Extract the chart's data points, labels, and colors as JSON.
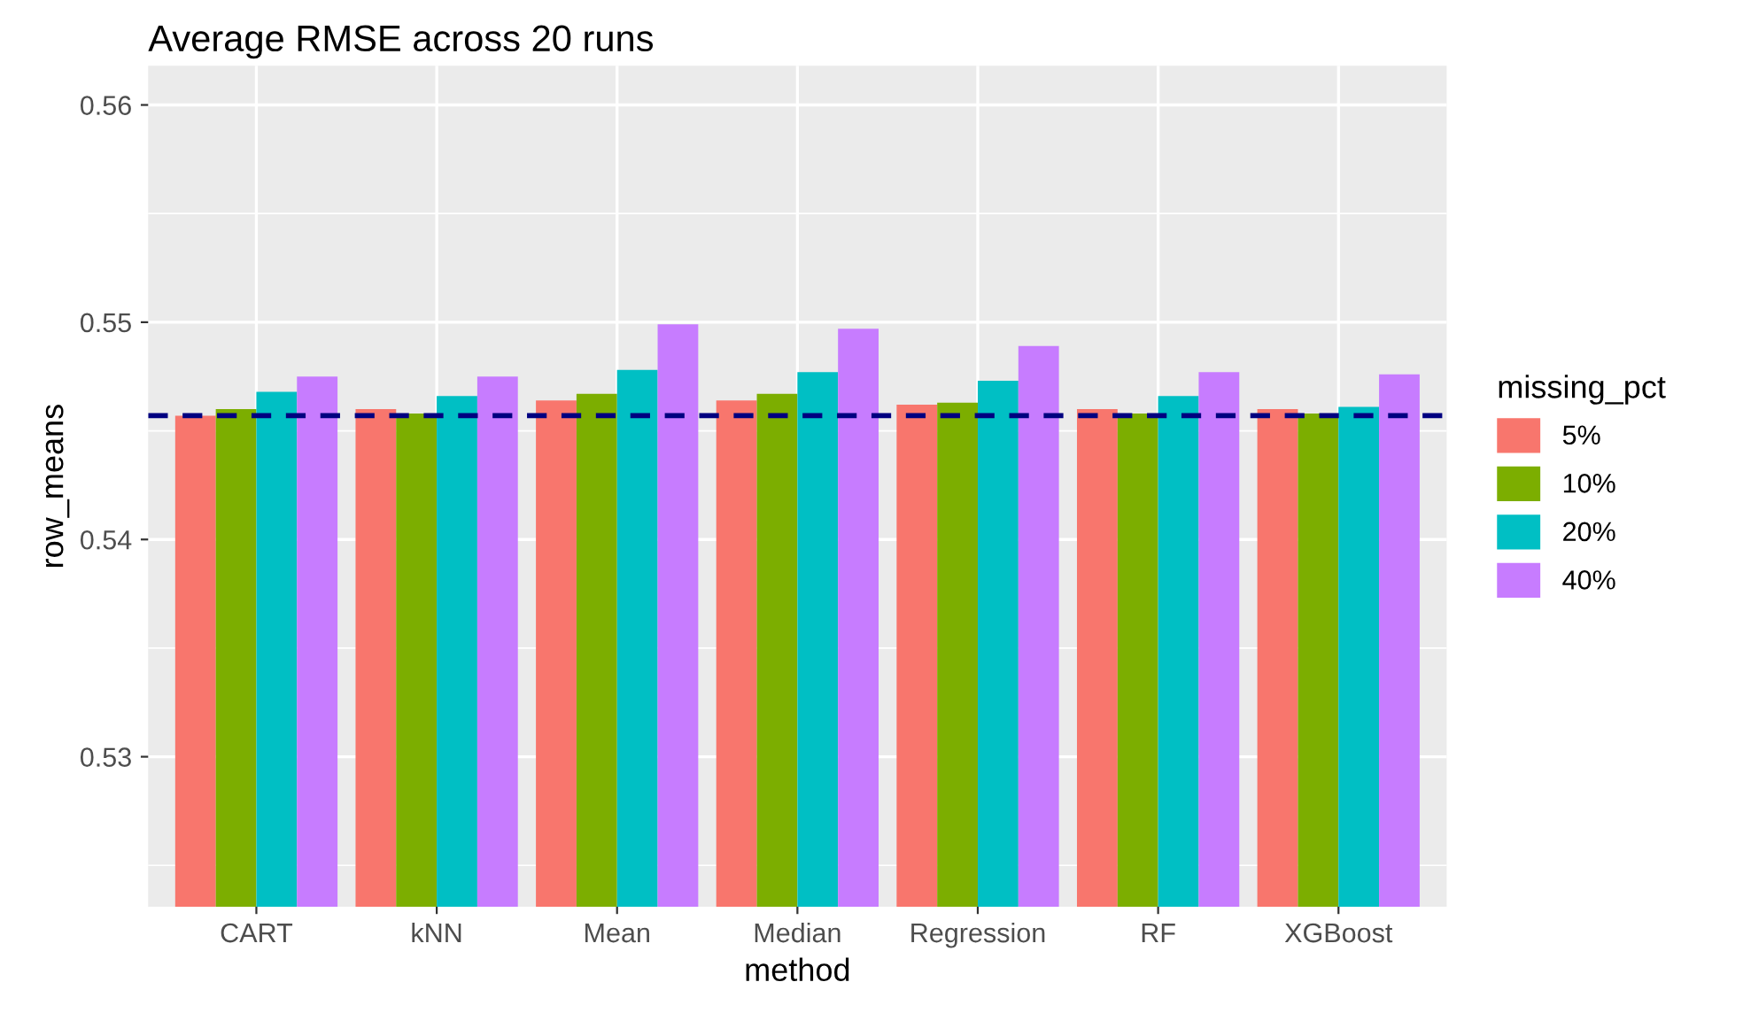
{
  "chart_data": {
    "type": "bar",
    "title": "Average RMSE across 20 runs",
    "xlabel": "method",
    "ylabel": "row_means",
    "legend_title": "missing_pct",
    "categories": [
      "CART",
      "kNN",
      "Mean",
      "Median",
      "Regression",
      "RF",
      "XGBoost"
    ],
    "series": [
      {
        "name": "5%",
        "color": "#f8766d",
        "values": [
          0.5457,
          0.546,
          0.5464,
          0.5464,
          0.5462,
          0.546,
          0.546
        ]
      },
      {
        "name": "10%",
        "color": "#7cae00",
        "values": [
          0.546,
          0.5458,
          0.5467,
          0.5467,
          0.5463,
          0.5458,
          0.5458
        ]
      },
      {
        "name": "20%",
        "color": "#00bfc4",
        "values": [
          0.5468,
          0.5466,
          0.5478,
          0.5477,
          0.5473,
          0.5466,
          0.5461
        ]
      },
      {
        "name": "40%",
        "color": "#c77cff",
        "values": [
          0.5475,
          0.5475,
          0.5499,
          0.5497,
          0.5489,
          0.5477,
          0.5476
        ]
      }
    ],
    "ylim": [
      0.5231,
      0.5618
    ],
    "yticks": [
      0.53,
      0.54,
      0.55,
      0.56
    ],
    "ref_lines": [
      {
        "axis": "y",
        "value": 0.5457,
        "color": "#000080",
        "line_style": "dashed"
      }
    ],
    "grid": true,
    "legend": "right"
  }
}
